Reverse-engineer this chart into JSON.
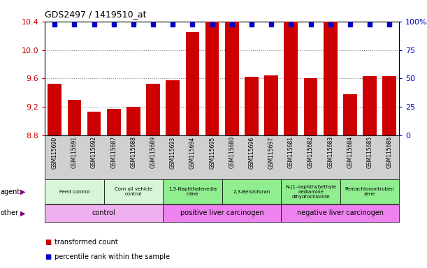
{
  "title": "GDS2497 / 1419510_at",
  "samples": [
    "GSM115690",
    "GSM115691",
    "GSM115692",
    "GSM115687",
    "GSM115688",
    "GSM115689",
    "GSM115693",
    "GSM115694",
    "GSM115695",
    "GSM115680",
    "GSM115696",
    "GSM115697",
    "GSM115681",
    "GSM115682",
    "GSM115683",
    "GSM115684",
    "GSM115685",
    "GSM115686"
  ],
  "transformed_counts": [
    9.52,
    9.3,
    9.13,
    9.17,
    9.2,
    9.52,
    9.57,
    10.25,
    10.55,
    10.47,
    9.62,
    9.64,
    10.53,
    9.6,
    10.54,
    9.38,
    9.63,
    9.63
  ],
  "percentile_ranks_y": [
    10.36,
    10.36,
    10.36,
    10.36,
    10.36,
    10.36,
    10.36,
    10.36,
    10.36,
    10.36,
    10.36,
    10.36,
    10.36,
    10.36,
    10.36,
    10.36,
    10.36,
    10.36
  ],
  "ylim_left": [
    8.8,
    10.4
  ],
  "ylim_right": [
    0,
    100
  ],
  "yticks_left": [
    8.8,
    9.2,
    9.6,
    10.0,
    10.4
  ],
  "yticks_right_vals": [
    0,
    25,
    50,
    75,
    100
  ],
  "yticks_right_labels": [
    "0",
    "25",
    "50",
    "75",
    "100%"
  ],
  "agent_groups": [
    {
      "label": "Feed control",
      "start": 0,
      "end": 3,
      "color": "#d8f5d8"
    },
    {
      "label": "Corn oil vehicle\ncontrol",
      "start": 3,
      "end": 6,
      "color": "#d8f5d8"
    },
    {
      "label": "1,5-Naphthalenedia\nmine",
      "start": 6,
      "end": 9,
      "color": "#90ee90"
    },
    {
      "label": "2,3-Benzofuran",
      "start": 9,
      "end": 12,
      "color": "#90ee90"
    },
    {
      "label": "N-(1-naphthyl)ethyle\nnediamine\ndihydrochloride",
      "start": 12,
      "end": 15,
      "color": "#90ee90"
    },
    {
      "label": "Pentachloronitroben\nzene",
      "start": 15,
      "end": 18,
      "color": "#90ee90"
    }
  ],
  "other_groups": [
    {
      "label": "control",
      "start": 0,
      "end": 6,
      "color": "#f0b0f0"
    },
    {
      "label": "positive liver carcinogen",
      "start": 6,
      "end": 12,
      "color": "#ee82ee"
    },
    {
      "label": "negative liver carcinogen",
      "start": 12,
      "end": 18,
      "color": "#ee82ee"
    }
  ],
  "bar_color": "#cc0000",
  "dot_color": "#0000cc",
  "left_axis_color": "#cc0000",
  "right_axis_color": "#0000cc",
  "xtick_bg_color": "#d0d0d0",
  "legend_items": [
    {
      "color": "#cc0000",
      "label": "transformed count"
    },
    {
      "color": "#0000cc",
      "label": "percentile rank within the sample"
    }
  ]
}
